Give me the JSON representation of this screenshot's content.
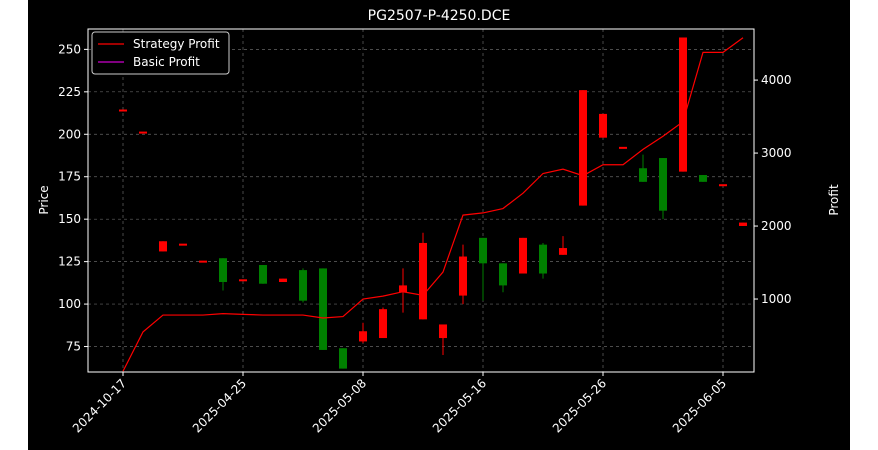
{
  "chart_data": {
    "type": "candlestick",
    "title": "PG2507-P-4250.DCE",
    "xlabel": "",
    "ylabel": "Price",
    "y2label": "Profit",
    "ylim": [
      60,
      262
    ],
    "y2lim": [
      0,
      4700
    ],
    "yticks": [
      75,
      100,
      125,
      150,
      175,
      200,
      225,
      250
    ],
    "y2ticks": [
      1000,
      2000,
      3000,
      4000
    ],
    "grid": true,
    "legend": {
      "placement": "top-left",
      "entries": [
        "Strategy Profit",
        "Basic Profit"
      ]
    },
    "xtick_labels": [
      {
        "index": 0,
        "label": "2024-10-17"
      },
      {
        "index": 6,
        "label": "2025-04-25"
      },
      {
        "index": 12,
        "label": "2025-05-08"
      },
      {
        "index": 18,
        "label": "2025-05-16"
      },
      {
        "index": 24,
        "label": "2025-05-26"
      },
      {
        "index": 30,
        "label": "2025-06-05"
      }
    ],
    "colors": {
      "up": "#ff0000",
      "down": "#008000",
      "strategy": "#ff0000",
      "basic": "#cc00cc",
      "background": "#000000",
      "text": "#ffffff"
    },
    "candles": [
      {
        "open": 214,
        "close": 214,
        "high": 214,
        "low": 214
      },
      {
        "open": 201,
        "close": 201,
        "high": 201,
        "low": 201
      },
      {
        "open": 131,
        "close": 137,
        "high": 137,
        "low": 131
      },
      {
        "open": 135,
        "close": 135,
        "high": 135,
        "low": 135
      },
      {
        "open": 125,
        "close": 125,
        "high": 125,
        "low": 125
      },
      {
        "open": 127,
        "close": 113,
        "high": 127,
        "low": 108
      },
      {
        "open": 114,
        "close": 114,
        "high": 114,
        "low": 114
      },
      {
        "open": 123,
        "close": 112,
        "high": 123,
        "low": 112
      },
      {
        "open": 113,
        "close": 115,
        "high": 115,
        "low": 113
      },
      {
        "open": 120,
        "close": 102,
        "high": 121,
        "low": 101
      },
      {
        "open": 121,
        "close": 73,
        "high": 121,
        "low": 73
      },
      {
        "open": 74,
        "close": 62,
        "high": 74,
        "low": 62
      },
      {
        "open": 78,
        "close": 84,
        "high": 89,
        "low": 77
      },
      {
        "open": 80,
        "close": 97,
        "high": 98,
        "low": 80
      },
      {
        "open": 107,
        "close": 111,
        "high": 121,
        "low": 95
      },
      {
        "open": 91,
        "close": 136,
        "high": 142,
        "low": 91
      },
      {
        "open": 80,
        "close": 88,
        "high": 88,
        "low": 70
      },
      {
        "open": 105,
        "close": 128,
        "high": 135,
        "low": 100
      },
      {
        "open": 139,
        "close": 124,
        "high": 139,
        "low": 102
      },
      {
        "open": 124,
        "close": 111,
        "high": 124,
        "low": 107
      },
      {
        "open": 118,
        "close": 139,
        "high": 139,
        "low": 118
      },
      {
        "open": 135,
        "close": 118,
        "high": 136,
        "low": 115
      },
      {
        "open": 129,
        "close": 133,
        "high": 140,
        "low": 129
      },
      {
        "open": 158,
        "close": 226,
        "high": 226,
        "low": 158
      },
      {
        "open": 198,
        "close": 212,
        "high": 212,
        "low": 198
      },
      {
        "open": 192,
        "close": 192,
        "high": 192,
        "low": 192
      },
      {
        "open": 180,
        "close": 172,
        "high": 188,
        "low": 172
      },
      {
        "open": 186,
        "close": 155,
        "high": 186,
        "low": 150
      },
      {
        "open": 178,
        "close": 257,
        "high": 257,
        "low": 178
      },
      {
        "open": 176,
        "close": 172,
        "high": 176,
        "low": 172
      },
      {
        "open": 170,
        "close": 170,
        "high": 170,
        "low": 170
      },
      {
        "open": 146,
        "close": 148,
        "high": 148,
        "low": 146
      }
    ],
    "series": [
      {
        "name": "Strategy Profit",
        "values": [
          10,
          550,
          780,
          780,
          780,
          800,
          790,
          780,
          780,
          780,
          740,
          760,
          1000,
          1040,
          1100,
          1050,
          1370,
          2150,
          2180,
          2240,
          2450,
          2720,
          2780,
          2690,
          2840,
          2840,
          3050,
          3230,
          3430,
          4380,
          4380,
          4580
        ]
      },
      {
        "name": "Basic Profit",
        "values": []
      }
    ]
  }
}
